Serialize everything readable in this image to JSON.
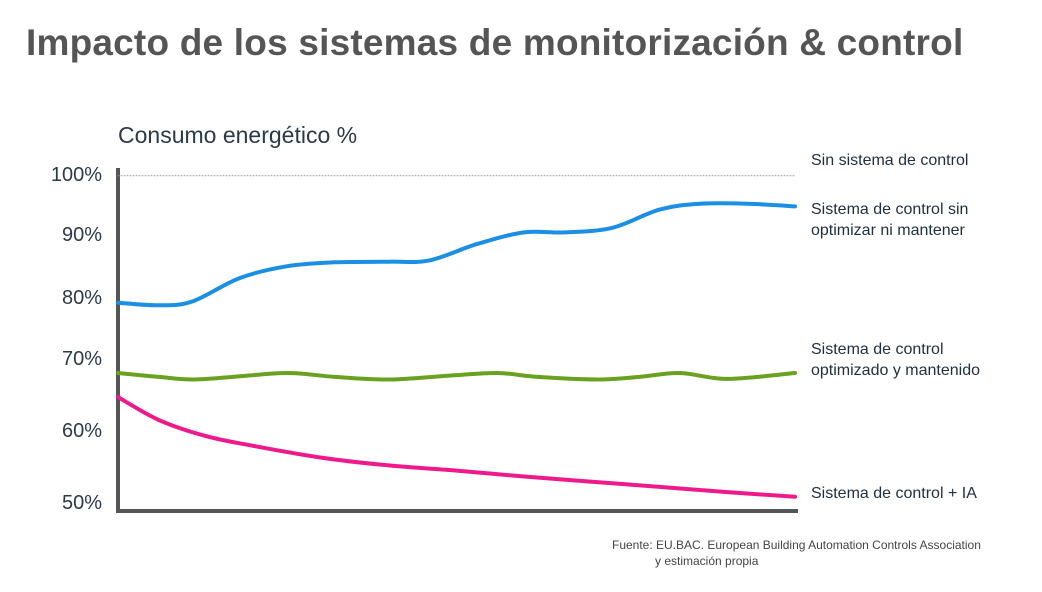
{
  "title": "Impacto de los sistemas de monitorización & control",
  "source": {
    "line1": "Fuente: EU.BAC. European Building Automation Controls Association",
    "line2": "y estimación propia"
  },
  "chart_data": {
    "type": "line",
    "title": "Impacto de los sistemas de monitorización & control",
    "ylabel": "Consumo energético %",
    "xlabel": "",
    "y_ticks": [
      "100%",
      "90%",
      "80%",
      "70%",
      "60%",
      "50%"
    ],
    "ylim": [
      49,
      102
    ],
    "xlim": [
      0,
      10
    ],
    "grid": false,
    "legend": "right",
    "x": [
      0,
      0.6,
      1.1,
      2,
      2.5,
      3,
      4,
      4.5,
      5,
      5.6,
      6,
      6.5,
      7.5,
      8,
      8.5,
      9.4,
      10
    ],
    "series": [
      {
        "name": "Sin sistema de control",
        "color": "#999999",
        "style": "dotted",
        "x": [
          0,
          10
        ],
        "values": [
          100.5,
          100.5
        ]
      },
      {
        "name": "Sistema de control sin optimizar ni mantener",
        "color": "#1a8fe3",
        "x": [
          0,
          0.6,
          1.1,
          1.8,
          2.5,
          3.2,
          4,
          4.6,
          5.3,
          6,
          6.6,
          7.3,
          8,
          8.6,
          9.3,
          10
        ],
        "values": [
          81,
          80.6,
          81.2,
          84.8,
          86.6,
          87.2,
          87.3,
          87.5,
          90,
          91.8,
          91.8,
          92.5,
          95.3,
          96.2,
          96.2,
          95.8
        ]
      },
      {
        "name": "Sistema de control optimizado y mantenido",
        "color": "#6aa120",
        "x": [
          0,
          0.6,
          1.1,
          1.7,
          2.5,
          3.2,
          4,
          4.9,
          5.6,
          6.2,
          7.1,
          7.7,
          8.3,
          9,
          10
        ],
        "values": [
          70.2,
          69.6,
          69.2,
          69.6,
          70.2,
          69.6,
          69.2,
          69.8,
          70.2,
          69.6,
          69.2,
          69.6,
          70.2,
          69.3,
          70.2
        ]
      },
      {
        "name": "Sistema de control + IA",
        "color": "#ee1a8c",
        "x": [
          0,
          0.6,
          1.3,
          2,
          3,
          4,
          5,
          6,
          7,
          8,
          9,
          10
        ],
        "values": [
          66.5,
          63,
          60.5,
          59,
          57.2,
          56,
          55.2,
          54.3,
          53.5,
          52.7,
          51.9,
          51.2
        ]
      }
    ],
    "series_labels": [
      [
        "Sin sistema de control"
      ],
      [
        "Sistema de control sin",
        "optimizar ni mantener"
      ],
      [
        "Sistema de control",
        "optimizado y mantenido"
      ],
      [
        "Sistema de control + IA"
      ]
    ]
  }
}
